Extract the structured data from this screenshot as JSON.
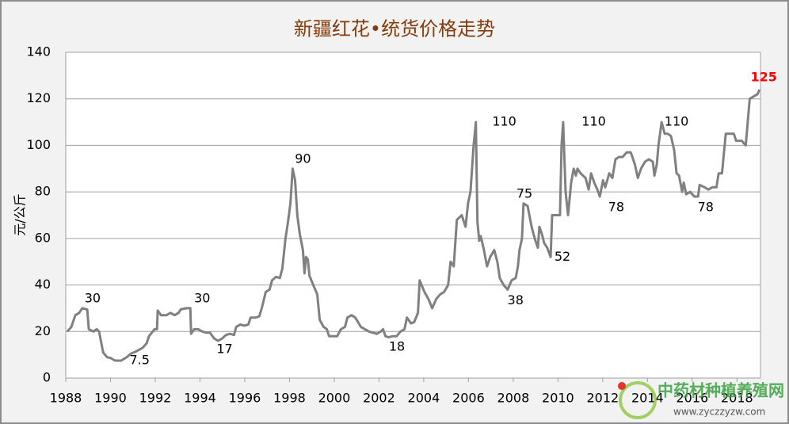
{
  "chart_data": {
    "type": "line",
    "title": "新疆红花•统货价格走势",
    "ylabel": "元/公斤",
    "xlim": [
      1988,
      2019.05
    ],
    "xticks": [
      1988,
      1990,
      1992,
      1994,
      1996,
      1998,
      2000,
      2002,
      2004,
      2006,
      2008,
      2010,
      2012,
      2014,
      2016,
      2018
    ],
    "ylim": [
      0,
      140
    ],
    "yticks": [
      0,
      20,
      40,
      60,
      80,
      100,
      120,
      140
    ],
    "grid": true,
    "series": [
      {
        "color": "#808080",
        "x": [
          1988.07,
          1988.25,
          1988.43,
          1988.6,
          1988.74,
          1988.96,
          1989.03,
          1989.24,
          1989.38,
          1989.49,
          1989.67,
          1989.84,
          1990.02,
          1990.2,
          1990.48,
          1990.73,
          1990.91,
          1991.16,
          1991.44,
          1991.62,
          1991.72,
          1991.97,
          1992.08,
          1992.11,
          1992.26,
          1992.5,
          1992.68,
          1992.86,
          1993.04,
          1993.14,
          1993.39,
          1993.57,
          1993.6,
          1993.74,
          1993.92,
          1994.1,
          1994.28,
          1994.45,
          1994.63,
          1994.81,
          1994.99,
          1995.16,
          1995.34,
          1995.52,
          1995.62,
          1995.8,
          1995.98,
          1996.16,
          1996.26,
          1996.48,
          1996.65,
          1996.76,
          1996.94,
          1997.11,
          1997.22,
          1997.4,
          1997.57,
          1997.68,
          1997.82,
          1997.93,
          1998.04,
          1998.14,
          1998.25,
          1998.35,
          1998.46,
          1998.6,
          1998.67,
          1998.74,
          1998.82,
          1998.89,
          1999.06,
          1999.24,
          1999.35,
          1999.52,
          1999.67,
          1999.77,
          1999.95,
          2000.13,
          2000.3,
          2000.48,
          2000.59,
          2000.77,
          2000.94,
          2001.19,
          2001.37,
          2001.55,
          2001.72,
          2001.9,
          2002.08,
          2002.18,
          2002.29,
          2002.43,
          2002.61,
          2002.79,
          2002.96,
          2003.14,
          2003.25,
          2003.43,
          2003.57,
          2003.74,
          2003.82,
          2004.03,
          2004.21,
          2004.38,
          2004.56,
          2004.74,
          2004.91,
          2005.09,
          2005.2,
          2005.34,
          2005.48,
          2005.7,
          2005.87,
          2005.98,
          2006.09,
          2006.23,
          2006.33,
          2006.4,
          2006.48,
          2006.55,
          2006.69,
          2006.83,
          2006.97,
          2007.15,
          2007.29,
          2007.4,
          2007.57,
          2007.75,
          2007.93,
          2008.11,
          2008.21,
          2008.28,
          2008.39,
          2008.46,
          2008.64,
          2008.82,
          2008.96,
          2009.1,
          2009.17,
          2009.28,
          2009.38,
          2009.52,
          2009.67,
          2009.74,
          2009.88,
          2010.09,
          2010.16,
          2010.23,
          2010.34,
          2010.45,
          2010.59,
          2010.7,
          2010.8,
          2010.87,
          2011.01,
          2011.23,
          2011.37,
          2011.48,
          2011.62,
          2011.76,
          2011.87,
          2012.01,
          2012.11,
          2012.29,
          2012.43,
          2012.57,
          2012.72,
          2012.89,
          2013.07,
          2013.25,
          2013.43,
          2013.57,
          2013.71,
          2013.89,
          2014.06,
          2014.24,
          2014.31,
          2014.42,
          2014.49,
          2014.63,
          2014.77,
          2014.91,
          2015.05,
          2015.19,
          2015.3,
          2015.41,
          2015.55,
          2015.62,
          2015.73,
          2015.91,
          2016.09,
          2016.26,
          2016.33,
          2016.55,
          2016.72,
          2016.9,
          2017.08,
          2017.18,
          2017.33,
          2017.5,
          2017.68,
          2017.86,
          2017.96,
          2018.21,
          2018.39,
          2018.57,
          2018.74,
          2018.92,
          2019.0
        ],
        "values": [
          20,
          22,
          27,
          28,
          30,
          29.5,
          21,
          20,
          21,
          20,
          11,
          9,
          8.5,
          7.5,
          7.5,
          9,
          10.5,
          11.5,
          13,
          15,
          18,
          21,
          21,
          29,
          27,
          27,
          28,
          27,
          28,
          29.5,
          30,
          30,
          19,
          21,
          21,
          20,
          19.5,
          19.5,
          17,
          16,
          17,
          18.5,
          19,
          18.5,
          22,
          23,
          22.5,
          23,
          26,
          26,
          26.5,
          30,
          37,
          38,
          42,
          43.5,
          43,
          47,
          60,
          67,
          75,
          90,
          85,
          70,
          62,
          55,
          45,
          52,
          51,
          44,
          40,
          36,
          25,
          22,
          21,
          18,
          18,
          18,
          21,
          22,
          26,
          27,
          26,
          22,
          21,
          20,
          19.5,
          19,
          20,
          21,
          18,
          17.5,
          18,
          18,
          20,
          21,
          26,
          23.5,
          24,
          28,
          42,
          37,
          34,
          30,
          34,
          36,
          37,
          40,
          50,
          48,
          68,
          70,
          65,
          75,
          80,
          100,
          110,
          67,
          59,
          61,
          55,
          48,
          52,
          55,
          50,
          43,
          40,
          38,
          42,
          43,
          48,
          55,
          60,
          75,
          74,
          65,
          60,
          56,
          65,
          62,
          58,
          56,
          52,
          70,
          70,
          70,
          100,
          110,
          80,
          70,
          84,
          90,
          87,
          90,
          88,
          86,
          81,
          88,
          84,
          81,
          78,
          85,
          82,
          88,
          86,
          94,
          95,
          95,
          97,
          97,
          92,
          86,
          90,
          93,
          94,
          93,
          87,
          92,
          100,
          110,
          105,
          105,
          104,
          98,
          88,
          87,
          80,
          84,
          79,
          80,
          78,
          78,
          83,
          82,
          81,
          82,
          82,
          88,
          88,
          105,
          105,
          105,
          102,
          102,
          100,
          120,
          121,
          122,
          124
        ]
      }
    ],
    "annotations": [
      {
        "x": 1989.2,
        "value": 30,
        "position": "above"
      },
      {
        "x": 1991.3,
        "value": 7.5,
        "position": "center"
      },
      {
        "x": 1994.1,
        "value": 30,
        "position": "above"
      },
      {
        "x": 1995.1,
        "value": 17,
        "position": "below"
      },
      {
        "x": 1998.6,
        "value": 90,
        "position": "above"
      },
      {
        "x": 2002.8,
        "value": 18,
        "position": "below"
      },
      {
        "x": 2007.6,
        "value": 110,
        "position": "center"
      },
      {
        "x": 2008.5,
        "value": 75,
        "position": "above"
      },
      {
        "x": 2008.1,
        "value": 38,
        "position": "below"
      },
      {
        "x": 2010.2,
        "value": 52,
        "position": "center"
      },
      {
        "x": 2011.6,
        "value": 110,
        "position": "center"
      },
      {
        "x": 2012.6,
        "value": 78,
        "position": "below"
      },
      {
        "x": 2015.3,
        "value": 110,
        "position": "center"
      },
      {
        "x": 2016.6,
        "value": 78,
        "position": "below"
      },
      {
        "x": 2019.2,
        "value": 125,
        "position": "above",
        "color": "#ff0000"
      }
    ],
    "watermark": {
      "name": "中药材种植养殖网",
      "url": "www.zyczzyzw.com"
    }
  }
}
